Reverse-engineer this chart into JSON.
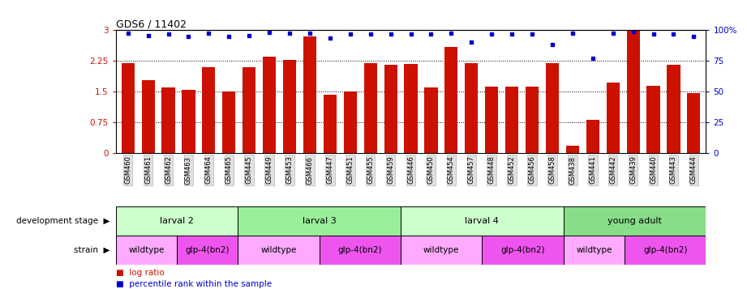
{
  "title": "GDS6 / 11402",
  "samples": [
    "GSM460",
    "GSM461",
    "GSM462",
    "GSM463",
    "GSM464",
    "GSM465",
    "GSM445",
    "GSM449",
    "GSM453",
    "GSM466",
    "GSM447",
    "GSM451",
    "GSM455",
    "GSM459",
    "GSM446",
    "GSM450",
    "GSM454",
    "GSM457",
    "GSM448",
    "GSM452",
    "GSM456",
    "GSM458",
    "GSM438",
    "GSM441",
    "GSM442",
    "GSM439",
    "GSM440",
    "GSM443",
    "GSM444"
  ],
  "log_ratio": [
    2.2,
    1.78,
    1.6,
    1.55,
    2.1,
    1.5,
    2.1,
    2.35,
    2.28,
    2.85,
    1.43,
    1.5,
    2.2,
    2.15,
    2.17,
    1.6,
    2.6,
    2.2,
    1.62,
    1.63,
    1.62,
    2.2,
    0.18,
    0.82,
    1.73,
    3.0,
    1.65,
    2.16,
    1.47
  ],
  "percentile": [
    97.7,
    96.0,
    96.7,
    95.0,
    97.7,
    95.0,
    96.0,
    98.3,
    97.7,
    97.7,
    94.0,
    96.7,
    97.3,
    96.7,
    97.3,
    96.7,
    97.7,
    90.7,
    96.7,
    97.3,
    96.7,
    88.3,
    97.7,
    77.3,
    97.7,
    99.3,
    96.7,
    97.3,
    95.0
  ],
  "bar_color": "#cc1100",
  "dot_color": "#0000cc",
  "ylim_left": [
    0,
    3
  ],
  "ylim_right": [
    0,
    100
  ],
  "yticks_left": [
    0,
    0.75,
    1.5,
    2.25,
    3
  ],
  "yticks_right": [
    0,
    25,
    50,
    75,
    100
  ],
  "ytick_labels_left": [
    "0",
    "0.75",
    "1.5",
    "2.25",
    "3"
  ],
  "ytick_labels_right": [
    "0",
    "25",
    "50",
    "75",
    "100%"
  ],
  "dev_stages": [
    {
      "label": "larval 2",
      "start": 0,
      "end": 6,
      "color": "#ccffcc"
    },
    {
      "label": "larval 3",
      "start": 6,
      "end": 14,
      "color": "#99ee99"
    },
    {
      "label": "larval 4",
      "start": 14,
      "end": 22,
      "color": "#ccffcc"
    },
    {
      "label": "young adult",
      "start": 22,
      "end": 29,
      "color": "#88dd88"
    }
  ],
  "strains": [
    {
      "label": "wildtype",
      "start": 0,
      "end": 3,
      "color": "#ffaaff"
    },
    {
      "label": "glp-4(bn2)",
      "start": 3,
      "end": 6,
      "color": "#ee55ee"
    },
    {
      "label": "wildtype",
      "start": 6,
      "end": 10,
      "color": "#ffaaff"
    },
    {
      "label": "glp-4(bn2)",
      "start": 10,
      "end": 14,
      "color": "#ee55ee"
    },
    {
      "label": "wildtype",
      "start": 14,
      "end": 18,
      "color": "#ffaaff"
    },
    {
      "label": "glp-4(bn2)",
      "start": 18,
      "end": 22,
      "color": "#ee55ee"
    },
    {
      "label": "wildtype",
      "start": 22,
      "end": 25,
      "color": "#ffaaff"
    },
    {
      "label": "glp-4(bn2)",
      "start": 25,
      "end": 29,
      "color": "#ee55ee"
    }
  ],
  "background_color": "#ffffff",
  "left_label_color": "#cc1100",
  "right_label_color": "#0000cc"
}
